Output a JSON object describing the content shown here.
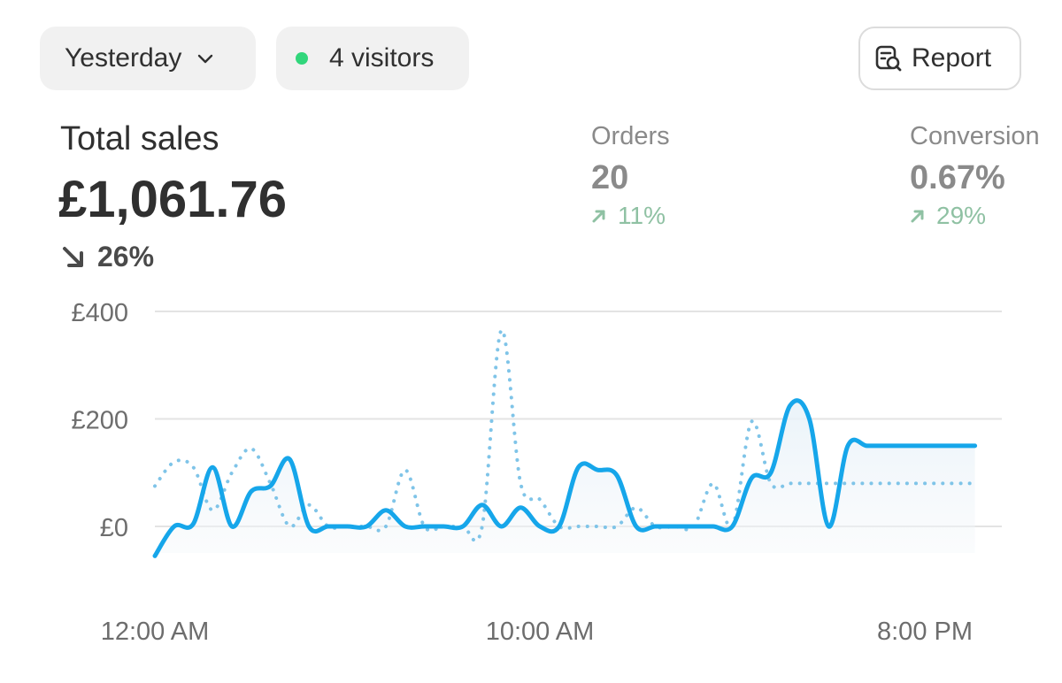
{
  "header": {
    "date_filter": {
      "label": "Yesterday",
      "icon": "chevron-down-icon"
    },
    "visitors": {
      "label": "4 visitors",
      "status_color": "#31d67b"
    },
    "report_button": {
      "label": "Report",
      "icon": "report-search-icon"
    }
  },
  "metrics": {
    "total_sales": {
      "title": "Total sales",
      "value": "£1,061.76",
      "change": "26%",
      "direction": "down"
    },
    "orders": {
      "title": "Orders",
      "value": "20",
      "change": "11%",
      "direction": "up"
    },
    "conversion": {
      "title": "Conversion",
      "value": "0.67%",
      "change": "29%",
      "direction": "up"
    }
  },
  "colors": {
    "primary_line": "#16a6ea",
    "comparison_line": "#7fc4e8",
    "gridline": "#e3e3e3",
    "axis_text": "#6d6d6d",
    "positive": "#8fc1a3"
  },
  "chart_data": {
    "type": "line",
    "ylim": [
      0,
      400
    ],
    "y_ticks": [
      "£0",
      "£200",
      "£400"
    ],
    "y_tick_values": [
      0,
      200,
      400
    ],
    "x_ticks": [
      "12:00 AM",
      "10:00 AM",
      "8:00 PM"
    ],
    "x_tick_values": [
      0,
      10,
      20
    ],
    "grid": true,
    "series": [
      {
        "style": "solid",
        "x": [
          0,
          0.5,
          1,
          1.5,
          2,
          2.5,
          3,
          3.5,
          4,
          4.5,
          5,
          5.5,
          6,
          6.5,
          7,
          7.5,
          8,
          8.5,
          9,
          9.5,
          10,
          10.5,
          11,
          11.5,
          12,
          12.5,
          13,
          13.5,
          14,
          14.5,
          15,
          15.5,
          16,
          16.5,
          17,
          17.5,
          18,
          18.5,
          19,
          19.5,
          20,
          20.5,
          21,
          21.5,
          22
        ],
        "values": [
          -55,
          0,
          5,
          110,
          0,
          65,
          75,
          125,
          0,
          0,
          0,
          0,
          30,
          0,
          0,
          0,
          0,
          40,
          0,
          35,
          0,
          0,
          110,
          105,
          95,
          0,
          0,
          0,
          0,
          0,
          0,
          90,
          100,
          225,
          200,
          0,
          150,
          150,
          150,
          150,
          150,
          150,
          150,
          150,
          150
        ]
      },
      {
        "style": "dotted",
        "x": [
          0,
          0.5,
          1,
          1.5,
          2,
          2.5,
          3,
          3.5,
          4,
          4.5,
          5,
          5.5,
          6,
          6.5,
          7,
          7.5,
          8,
          8.5,
          9,
          9.5,
          10,
          10.5,
          11,
          11.5,
          12,
          12.5,
          13,
          13.5,
          14,
          14.5,
          15,
          15.5,
          16,
          16.5,
          17,
          17.5,
          18,
          18.5,
          19,
          19.5,
          20,
          20.5,
          21,
          21.5,
          22
        ],
        "values": [
          75,
          120,
          110,
          30,
          100,
          145,
          80,
          0,
          40,
          0,
          0,
          0,
          0,
          105,
          0,
          0,
          0,
          0,
          365,
          80,
          50,
          0,
          0,
          0,
          0,
          35,
          0,
          0,
          0,
          80,
          0,
          195,
          80,
          80,
          80,
          80,
          80,
          80,
          80,
          80,
          80,
          80,
          80,
          80,
          80
        ]
      }
    ]
  }
}
